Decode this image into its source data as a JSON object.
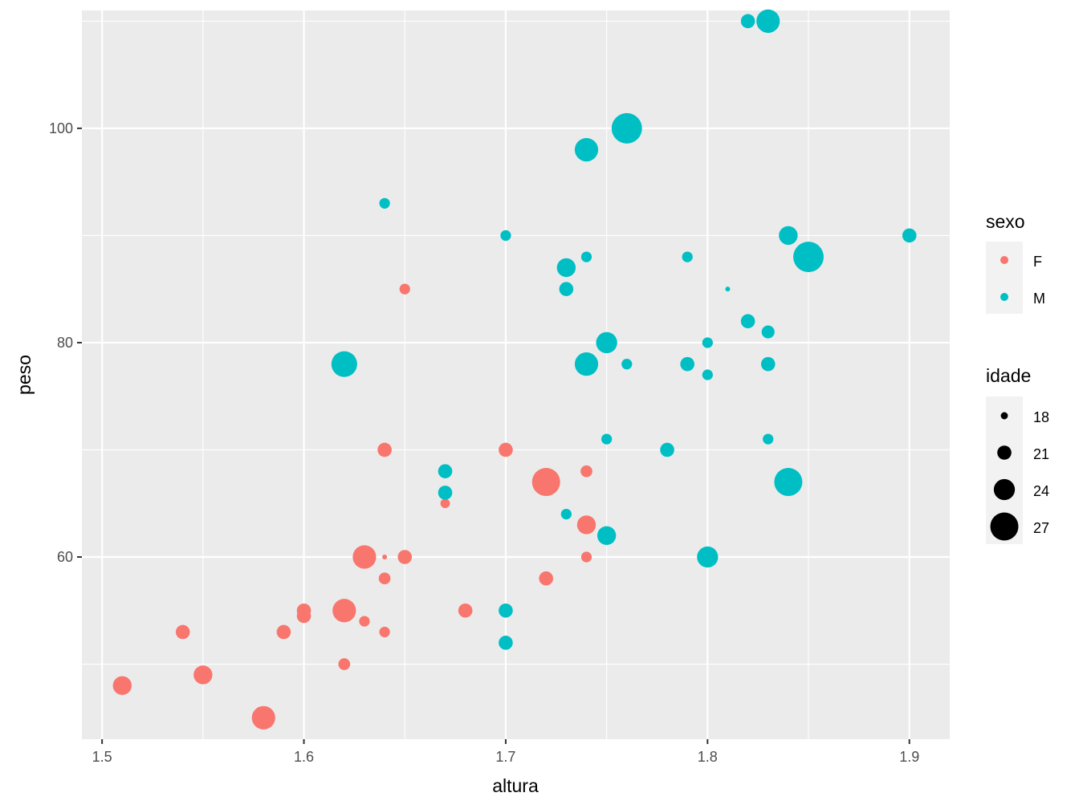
{
  "chart_data": {
    "type": "scatter",
    "title": "",
    "xlabel": "altura",
    "ylabel": "peso",
    "xlim": [
      1.49,
      1.92
    ],
    "ylim": [
      43,
      111
    ],
    "x_ticks": [
      "1.5",
      "1.6",
      "1.7",
      "1.8",
      "1.9"
    ],
    "y_ticks": [
      "60",
      "80",
      "100"
    ],
    "grid": true,
    "legend_position": "right",
    "color_legend": {
      "title": "sexo",
      "entries": [
        {
          "label": "F",
          "color": "#F8766D"
        },
        {
          "label": "M",
          "color": "#00BFC4"
        }
      ]
    },
    "size_legend": {
      "title": "idade",
      "entries": [
        "18",
        "21",
        "24",
        "27"
      ]
    },
    "series": [
      {
        "name": "F",
        "color": "#F8766D",
        "points": [
          {
            "x": 1.51,
            "y": 48,
            "idade": 23
          },
          {
            "x": 1.54,
            "y": 53,
            "idade": 21
          },
          {
            "x": 1.55,
            "y": 49,
            "idade": 23
          },
          {
            "x": 1.58,
            "y": 45,
            "idade": 25
          },
          {
            "x": 1.59,
            "y": 53,
            "idade": 21
          },
          {
            "x": 1.6,
            "y": 55,
            "idade": 21
          },
          {
            "x": 1.6,
            "y": 54.5,
            "idade": 21
          },
          {
            "x": 1.62,
            "y": 55,
            "idade": 25
          },
          {
            "x": 1.62,
            "y": 50,
            "idade": 20
          },
          {
            "x": 1.63,
            "y": 60,
            "idade": 25
          },
          {
            "x": 1.63,
            "y": 54,
            "idade": 19.5
          },
          {
            "x": 1.64,
            "y": 70,
            "idade": 21
          },
          {
            "x": 1.64,
            "y": 60,
            "idade": 17
          },
          {
            "x": 1.64,
            "y": 58,
            "idade": 20
          },
          {
            "x": 1.64,
            "y": 53,
            "idade": 19.5
          },
          {
            "x": 1.65,
            "y": 85,
            "idade": 19.5
          },
          {
            "x": 1.65,
            "y": 60,
            "idade": 21
          },
          {
            "x": 1.67,
            "y": 65,
            "idade": 19
          },
          {
            "x": 1.68,
            "y": 55,
            "idade": 21
          },
          {
            "x": 1.7,
            "y": 70,
            "idade": 21
          },
          {
            "x": 1.72,
            "y": 67,
            "idade": 27
          },
          {
            "x": 1.72,
            "y": 58,
            "idade": 21
          },
          {
            "x": 1.74,
            "y": 68,
            "idade": 20
          },
          {
            "x": 1.74,
            "y": 63,
            "idade": 23
          },
          {
            "x": 1.74,
            "y": 60,
            "idade": 19.5
          }
        ]
      },
      {
        "name": "M",
        "color": "#00BFC4",
        "points": [
          {
            "x": 1.62,
            "y": 78,
            "idade": 26
          },
          {
            "x": 1.64,
            "y": 93,
            "idade": 19.5
          },
          {
            "x": 1.67,
            "y": 68,
            "idade": 21
          },
          {
            "x": 1.67,
            "y": 66,
            "idade": 21
          },
          {
            "x": 1.7,
            "y": 90,
            "idade": 19.5
          },
          {
            "x": 1.7,
            "y": 55,
            "idade": 21
          },
          {
            "x": 1.7,
            "y": 52,
            "idade": 21
          },
          {
            "x": 1.73,
            "y": 87,
            "idade": 23
          },
          {
            "x": 1.73,
            "y": 85,
            "idade": 21
          },
          {
            "x": 1.73,
            "y": 64,
            "idade": 19.5
          },
          {
            "x": 1.74,
            "y": 98,
            "idade": 25
          },
          {
            "x": 1.74,
            "y": 88,
            "idade": 19.5
          },
          {
            "x": 1.74,
            "y": 78,
            "idade": 25
          },
          {
            "x": 1.75,
            "y": 80,
            "idade": 24
          },
          {
            "x": 1.75,
            "y": 71,
            "idade": 19.5
          },
          {
            "x": 1.75,
            "y": 62,
            "idade": 23
          },
          {
            "x": 1.76,
            "y": 100,
            "idade": 28
          },
          {
            "x": 1.76,
            "y": 78,
            "idade": 19.5
          },
          {
            "x": 1.78,
            "y": 70,
            "idade": 21
          },
          {
            "x": 1.79,
            "y": 88,
            "idade": 19.5
          },
          {
            "x": 1.79,
            "y": 78,
            "idade": 21
          },
          {
            "x": 1.8,
            "y": 80,
            "idade": 19.5
          },
          {
            "x": 1.8,
            "y": 77,
            "idade": 19.5
          },
          {
            "x": 1.8,
            "y": 60,
            "idade": 24
          },
          {
            "x": 1.81,
            "y": 85,
            "idade": 17
          },
          {
            "x": 1.82,
            "y": 110,
            "idade": 21
          },
          {
            "x": 1.82,
            "y": 82,
            "idade": 21
          },
          {
            "x": 1.83,
            "y": 110,
            "idade": 25
          },
          {
            "x": 1.83,
            "y": 81,
            "idade": 20.5
          },
          {
            "x": 1.83,
            "y": 78,
            "idade": 21
          },
          {
            "x": 1.83,
            "y": 71,
            "idade": 19.5
          },
          {
            "x": 1.84,
            "y": 90,
            "idade": 23
          },
          {
            "x": 1.84,
            "y": 67,
            "idade": 27
          },
          {
            "x": 1.85,
            "y": 88,
            "idade": 28
          },
          {
            "x": 1.9,
            "y": 90,
            "idade": 21
          }
        ]
      }
    ]
  }
}
